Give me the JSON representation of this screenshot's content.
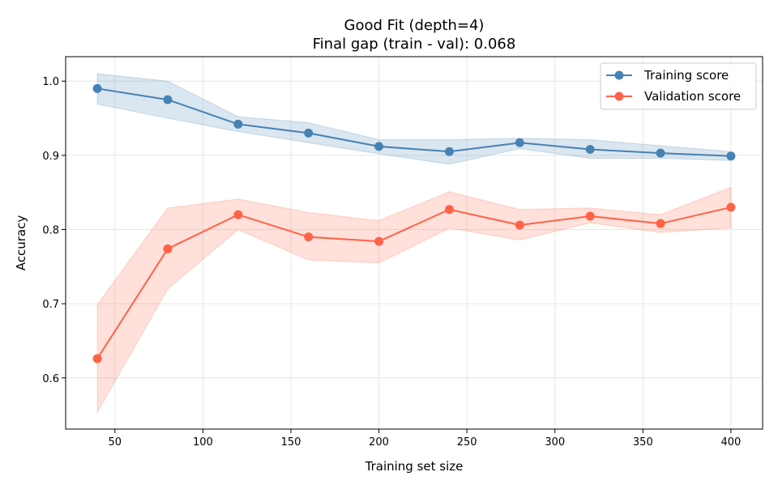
{
  "chart_data": {
    "type": "line",
    "title": "Good Fit (depth=4)",
    "subtitle": "Final gap (train - val): 0.068",
    "xlabel": "Training set size",
    "ylabel": "Accuracy",
    "xlim": [
      22,
      418
    ],
    "ylim": [
      0.531,
      1.033
    ],
    "xticks": [
      50,
      100,
      150,
      200,
      250,
      300,
      350,
      400
    ],
    "yticks": [
      0.6,
      0.7,
      0.8,
      0.9,
      1.0
    ],
    "ytick_labels": [
      "0.6",
      "0.7",
      "0.8",
      "0.9",
      "1.0"
    ],
    "grid": true,
    "legend_position": "top-right",
    "x": [
      40,
      80,
      120,
      160,
      200,
      240,
      280,
      320,
      360,
      400
    ],
    "series": [
      {
        "name": "Training score",
        "color": "#4682b4",
        "values": [
          0.99,
          0.975,
          0.942,
          0.93,
          0.912,
          0.905,
          0.917,
          0.908,
          0.903,
          0.899
        ],
        "upper": [
          1.01,
          1.0,
          0.952,
          0.944,
          0.921,
          0.921,
          0.923,
          0.921,
          0.913,
          0.905
        ],
        "lower": [
          0.969,
          0.95,
          0.932,
          0.917,
          0.902,
          0.888,
          0.909,
          0.896,
          0.896,
          0.893
        ]
      },
      {
        "name": "Validation score",
        "color": "#ff6347",
        "values": [
          0.626,
          0.774,
          0.82,
          0.79,
          0.784,
          0.827,
          0.806,
          0.818,
          0.808,
          0.83
        ],
        "upper": [
          0.699,
          0.829,
          0.841,
          0.823,
          0.812,
          0.851,
          0.827,
          0.829,
          0.82,
          0.857
        ],
        "lower": [
          0.554,
          0.72,
          0.8,
          0.759,
          0.755,
          0.802,
          0.786,
          0.809,
          0.796,
          0.802
        ]
      }
    ]
  }
}
